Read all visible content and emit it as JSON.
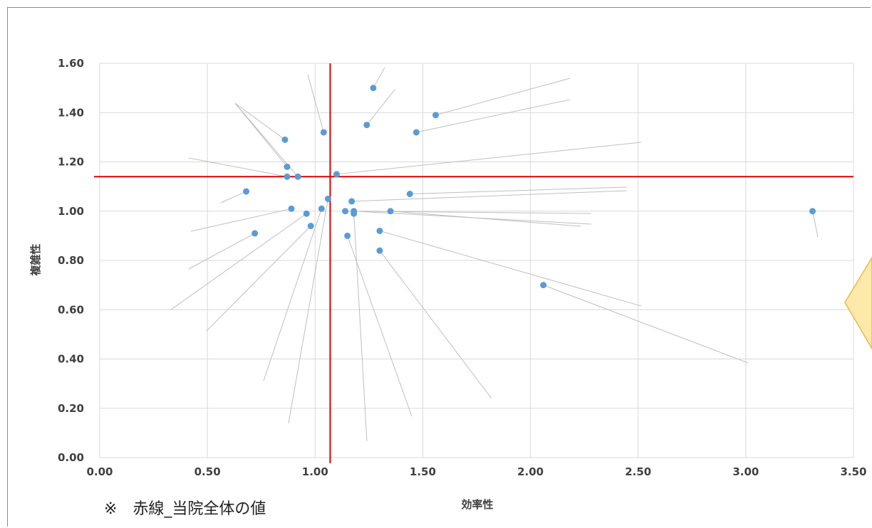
{
  "note": "※　赤線_当院全体の値",
  "colors": {
    "point": "#5b9bd5",
    "reference_line": "#e00000",
    "grid": "#d9d9d9",
    "callout_fill": "#fde9a9",
    "callout_stroke": "#e8b84d"
  },
  "chart_data": {
    "type": "scatter",
    "title": "",
    "xlabel": "効率性",
    "ylabel": "複雑性",
    "xlim": [
      0,
      3.5
    ],
    "ylim": [
      0,
      1.6
    ],
    "x_ticks": [
      "0.00",
      "0.50",
      "1.00",
      "1.50",
      "2.00",
      "2.50",
      "3.00",
      "3.50"
    ],
    "y_ticks": [
      "0.00",
      "0.20",
      "0.40",
      "0.60",
      "0.80",
      "1.00",
      "1.20",
      "1.40",
      "1.60"
    ],
    "grid": true,
    "reference_lines": {
      "x": 1.07,
      "y": 1.14
    },
    "series": [
      {
        "points": [
          {
            "x": 0.86,
            "y": 1.29
          },
          {
            "x": 0.87,
            "y": 1.18
          },
          {
            "x": 0.87,
            "y": 1.14
          },
          {
            "x": 0.92,
            "y": 1.14
          },
          {
            "x": 1.04,
            "y": 1.32
          },
          {
            "x": 1.1,
            "y": 1.15
          },
          {
            "x": 1.24,
            "y": 1.35
          },
          {
            "x": 1.27,
            "y": 1.5
          },
          {
            "x": 1.47,
            "y": 1.32
          },
          {
            "x": 1.56,
            "y": 1.39
          },
          {
            "x": 0.68,
            "y": 1.08
          },
          {
            "x": 0.89,
            "y": 1.01
          },
          {
            "x": 0.96,
            "y": 0.99
          },
          {
            "x": 0.98,
            "y": 0.94
          },
          {
            "x": 1.03,
            "y": 1.01
          },
          {
            "x": 1.06,
            "y": 1.05
          },
          {
            "x": 0.72,
            "y": 0.91
          },
          {
            "x": 1.14,
            "y": 1.0
          },
          {
            "x": 1.17,
            "y": 1.04
          },
          {
            "x": 1.18,
            "y": 1.0
          },
          {
            "x": 1.18,
            "y": 0.99
          },
          {
            "x": 1.15,
            "y": 0.9
          },
          {
            "x": 1.3,
            "y": 0.92
          },
          {
            "x": 1.3,
            "y": 0.84
          },
          {
            "x": 1.35,
            "y": 1.0
          },
          {
            "x": 1.44,
            "y": 1.07
          },
          {
            "x": 2.06,
            "y": 0.7
          },
          {
            "x": 3.31,
            "y": 1.0
          }
        ]
      }
    ]
  }
}
